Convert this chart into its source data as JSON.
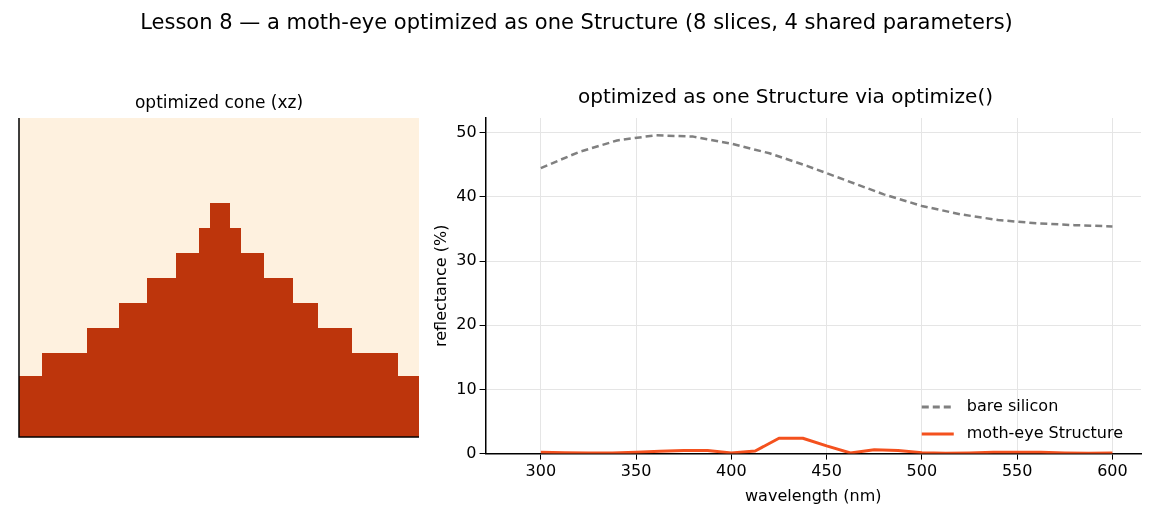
{
  "chart_data": [
    {
      "type": "other",
      "title": "optimized cone (xz)",
      "annotations": [
        "Lesson 8 — a moth-eye optimized as one Structure (8 slices, 4 shared parameters)"
      ]
    },
    {
      "type": "line",
      "title": "optimized as one Structure via optimize()",
      "xlabel": "wavelength (nm)",
      "ylabel": "reflectance (%)",
      "xlim": [
        271,
        615
      ],
      "xticks": [
        300,
        350,
        400,
        450,
        500,
        550,
        600
      ],
      "ylim": [
        0,
        52.3
      ],
      "yticks": [
        0,
        10,
        20,
        30,
        40,
        50
      ],
      "grid": true,
      "legend": "bottom right",
      "series": [
        {
          "name": "bare silicon",
          "color": "#808080",
          "line_style": "dashed",
          "x": [
            300,
            320,
            340,
            360,
            380,
            400,
            420,
            440,
            460,
            480,
            500,
            520,
            540,
            560,
            580,
            600
          ],
          "values": [
            44.5,
            47,
            48.8,
            49.6,
            49.4,
            48.3,
            46.8,
            44.8,
            42.6,
            40.4,
            38.6,
            37.3,
            36.4,
            35.9,
            35.6,
            35.4
          ]
        },
        {
          "name": "moth-eye Structure",
          "color": "#f4511e",
          "line_style": "solid",
          "x": [
            300,
            312.5,
            325,
            337.5,
            350,
            362.5,
            375,
            387.5,
            400,
            412.5,
            425,
            437.5,
            450,
            462.5,
            475,
            487.5,
            500,
            512.5,
            525,
            537.5,
            550,
            562.5,
            575,
            587.5,
            600
          ],
          "values": [
            0.2,
            0.15,
            0.1,
            0.1,
            0.2,
            0.35,
            0.5,
            0.5,
            0.1,
            0.4,
            2.4,
            2.4,
            1.2,
            0.1,
            0.6,
            0.5,
            0.15,
            0.05,
            0.1,
            0.2,
            0.2,
            0.2,
            0.1,
            0.05,
            0.1
          ]
        }
      ]
    }
  ]
}
